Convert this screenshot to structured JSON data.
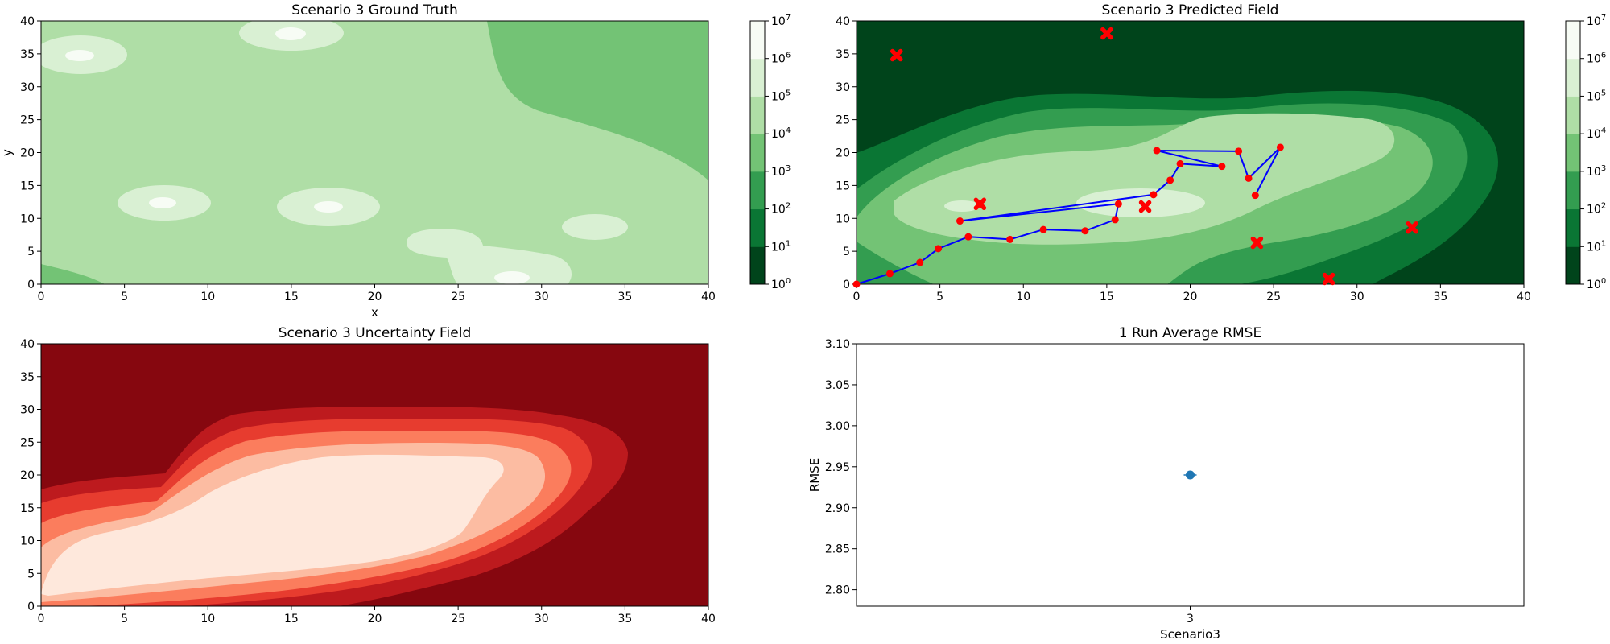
{
  "chart_data": [
    {
      "type": "contour",
      "title": "Scenario 3 Ground Truth",
      "xlabel": "x",
      "ylabel": "y",
      "xlim": [
        0,
        40
      ],
      "ylim": [
        0,
        40
      ],
      "xticks": [
        "0",
        "5",
        "10",
        "15",
        "20",
        "25",
        "30",
        "35",
        "40"
      ],
      "yticks": [
        "0",
        "5",
        "10",
        "15",
        "20",
        "25",
        "30",
        "35",
        "40"
      ],
      "colormap": "Greens",
      "colorbar": {
        "scale": "log",
        "exponents": [
          "0",
          "1",
          "2",
          "3",
          "4",
          "5",
          "6",
          "7"
        ],
        "colors": [
          "#00441b",
          "#0a7634",
          "#339d50",
          "#73c375",
          "#afdea6",
          "#d9f0d3",
          "#f7fcf5"
        ]
      },
      "regions": [
        {
          "name": "high-level-east",
          "level": 3
        },
        {
          "name": "southwest-corner",
          "level": 3
        },
        {
          "name": "background",
          "level": 4
        },
        {
          "name": "peak-nw",
          "center": [
            2.3,
            34.7
          ],
          "level": 6
        },
        {
          "name": "peak-n",
          "center": [
            15,
            37.8
          ],
          "level": 6
        },
        {
          "name": "peak-w",
          "center": [
            7.3,
            12.2
          ],
          "level": 6
        },
        {
          "name": "peak-c",
          "center": [
            17.3,
            11.6
          ],
          "level": 6
        },
        {
          "name": "peak-e",
          "center": [
            33.3,
            8.6
          ],
          "level": 5
        },
        {
          "name": "peak-s",
          "center": [
            28.3,
            0.8
          ],
          "level": 6
        }
      ]
    },
    {
      "type": "contour",
      "title": "Scenario 3 Predicted Field",
      "xlim": [
        0,
        40
      ],
      "ylim": [
        0,
        40
      ],
      "xticks": [
        "0",
        "5",
        "10",
        "15",
        "20",
        "25",
        "30",
        "35",
        "40"
      ],
      "yticks": [
        "0",
        "5",
        "10",
        "15",
        "20",
        "25",
        "30",
        "35",
        "40"
      ],
      "colormap": "Greens",
      "colorbar": {
        "scale": "log",
        "exponents": [
          "0",
          "1",
          "2",
          "3",
          "4",
          "5",
          "6",
          "7"
        ]
      },
      "path": {
        "color": "#0000ff",
        "marker_color": "#ff0000",
        "points": [
          [
            0,
            0
          ],
          [
            2,
            1.6
          ],
          [
            3.8,
            3.3
          ],
          [
            4.9,
            5.4
          ],
          [
            6.7,
            7.2
          ],
          [
            9.2,
            6.8
          ],
          [
            11.2,
            8.3
          ],
          [
            13.7,
            8.1
          ],
          [
            15.5,
            9.8
          ],
          [
            15.7,
            12.2
          ],
          [
            6.2,
            9.6
          ],
          [
            17.8,
            13.6
          ],
          [
            18.8,
            15.8
          ],
          [
            19.4,
            18.3
          ],
          [
            21.9,
            17.9
          ],
          [
            18,
            20.3
          ],
          [
            22.9,
            20.2
          ],
          [
            23.5,
            16.1
          ],
          [
            25.4,
            20.8
          ],
          [
            23.9,
            13.5
          ]
        ]
      },
      "sources": [
        [
          2.4,
          34.8
        ],
        [
          15,
          38.1
        ],
        [
          7.4,
          12.2
        ],
        [
          17.3,
          11.8
        ],
        [
          24,
          6.3
        ],
        [
          33.3,
          8.6
        ],
        [
          28.3,
          0.8
        ]
      ]
    },
    {
      "type": "contour",
      "title": "Scenario 3 Uncertainty Field",
      "xlim": [
        0,
        40
      ],
      "ylim": [
        0,
        40
      ],
      "xticks": [
        "0",
        "5",
        "10",
        "15",
        "20",
        "25",
        "30",
        "35",
        "40"
      ],
      "yticks": [
        "0",
        "5",
        "10",
        "15",
        "20",
        "25",
        "30",
        "35",
        "40"
      ],
      "colormap": "Reds",
      "colors": [
        "#fee8dc",
        "#fcbca2",
        "#fb7d5d",
        "#e73c2f",
        "#bd1a1e",
        "#86070f"
      ]
    },
    {
      "type": "errorbar",
      "title": "1 Run Average RMSE",
      "xlabel": "Scenario3",
      "ylabel": "RMSE",
      "categories": [
        "3"
      ],
      "values": [
        2.94
      ],
      "ylim": [
        2.78,
        3.1
      ],
      "yticks": [
        "2.80",
        "2.85",
        "2.90",
        "2.95",
        "3.00",
        "3.05",
        "3.10"
      ],
      "color": "#1f77b4"
    }
  ]
}
